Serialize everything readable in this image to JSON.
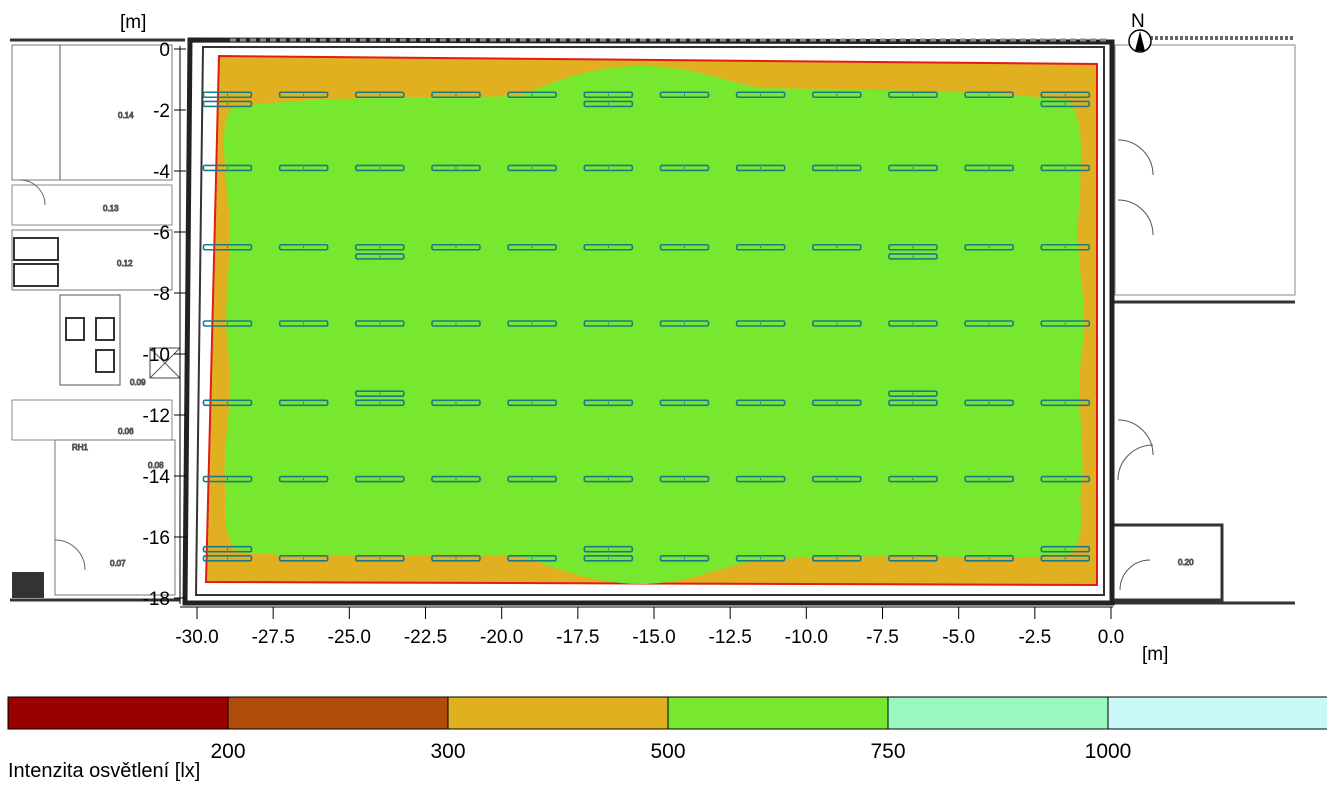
{
  "plan": {
    "x_unit": "[m]",
    "y_unit": "[m]",
    "north_label": "N",
    "x_ticks": [
      "-30.0",
      "-27.5",
      "-25.0",
      "-22.5",
      "-20.0",
      "-17.5",
      "-15.0",
      "-12.5",
      "-10.0",
      "-7.5",
      "-5.0",
      "-2.5",
      "0.0"
    ],
    "y_ticks": [
      "0",
      "-2",
      "-4",
      "-6",
      "-8",
      "-10",
      "-12",
      "-14",
      "-16",
      "-18"
    ],
    "room_labels": [
      "0.14",
      "0.13",
      "0.12",
      "0.09",
      "0.06",
      "RH1",
      "0.08",
      "0.07",
      "0.20"
    ]
  },
  "legend": {
    "colors": [
      "#990000",
      "#b04c0c",
      "#e0b020",
      "#77e82f",
      "#98f8c0",
      "#c8f8f8"
    ],
    "thresholds": [
      "200",
      "300",
      "500",
      "750",
      "1000"
    ],
    "caption": "Intenzita osvětlení [lx]"
  },
  "chart_data": {
    "type": "heatmap",
    "title": "",
    "xlabel": "[m]",
    "ylabel": "[m]",
    "xlim": [
      -30.5,
      0.5
    ],
    "ylim": [
      -18,
      0.3
    ],
    "contour_levels_lx": [
      200,
      300,
      500,
      750,
      1000
    ],
    "zones": [
      {
        "range_lx": "300-500",
        "color": "#e0b020",
        "location": "perimeter band"
      },
      {
        "range_lx": "500-750",
        "color": "#77e82f",
        "location": "interior"
      }
    ],
    "luminaire_rows_y_m": [
      -1.5,
      -3.9,
      -6.5,
      -9.0,
      -11.6,
      -14.1,
      -16.7
    ],
    "luminaire_cols_x_m": [
      -29.0,
      -26.5,
      -24.0,
      -21.5,
      -19.0,
      -16.5,
      -14.0,
      -11.5,
      -9.0,
      -6.5,
      -4.0,
      -1.5
    ]
  }
}
